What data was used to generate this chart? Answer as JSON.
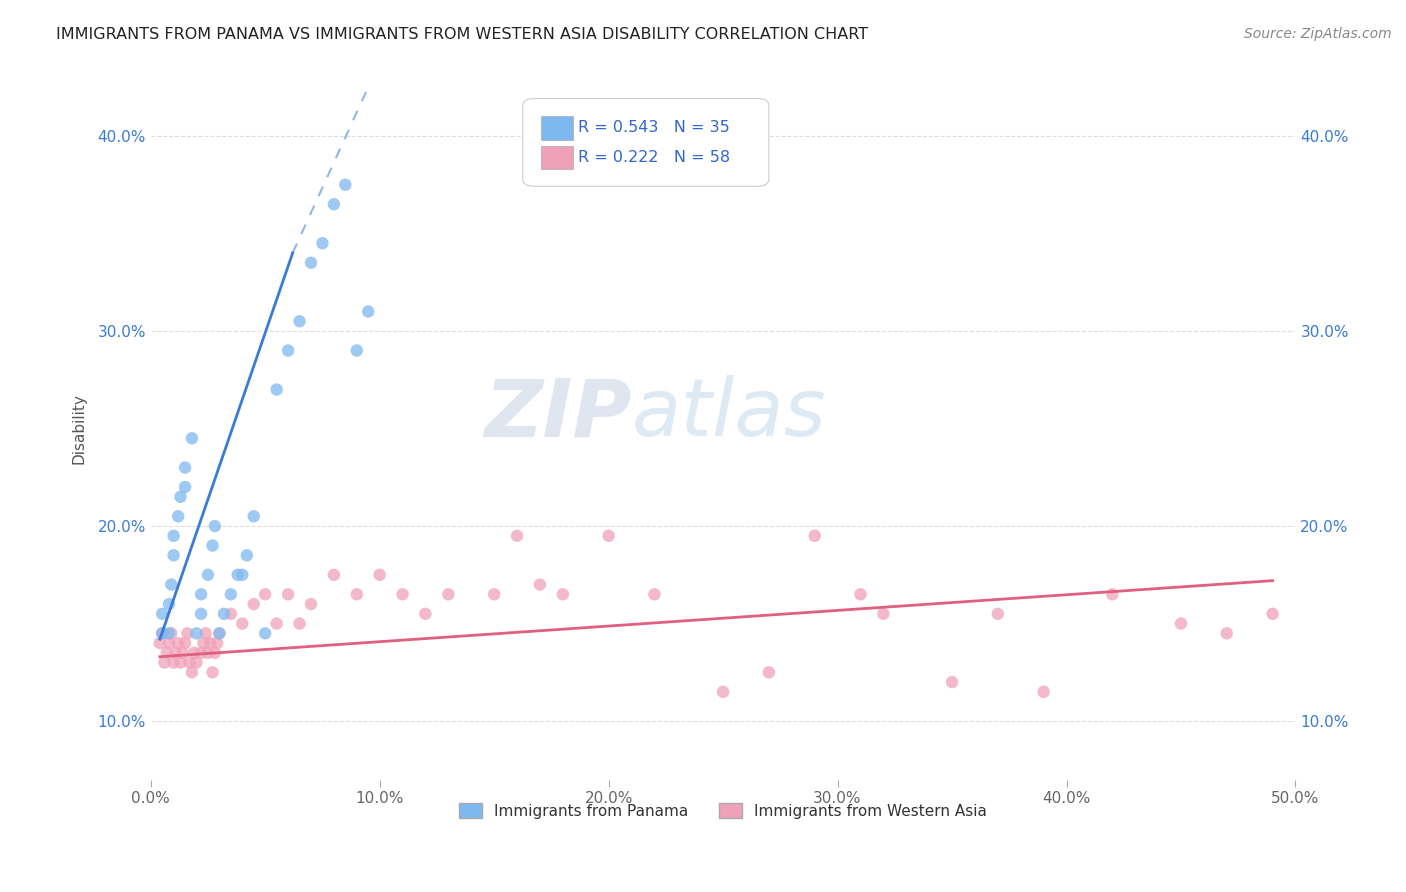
{
  "title": "IMMIGRANTS FROM PANAMA VS IMMIGRANTS FROM WESTERN ASIA DISABILITY CORRELATION CHART",
  "source": "Source: ZipAtlas.com",
  "ylabel": "Disability",
  "xlim": [
    0.0,
    0.5
  ],
  "ylim": [
    0.07,
    0.43
  ],
  "xticks": [
    0.0,
    0.1,
    0.2,
    0.3,
    0.4,
    0.5
  ],
  "yticks": [
    0.1,
    0.2,
    0.3,
    0.4
  ],
  "ytick_labels": [
    "10.0%",
    "20.0%",
    "30.0%",
    "40.0%"
  ],
  "xtick_labels": [
    "0.0%",
    "10.0%",
    "20.0%",
    "30.0%",
    "40.0%",
    "50.0%"
  ],
  "watermark_zip": "ZIP",
  "watermark_atlas": "atlas",
  "legend_r1": "R = 0.543",
  "legend_n1": "N = 35",
  "legend_r2": "R = 0.222",
  "legend_n2": "N = 58",
  "color_panama": "#7eb8f0",
  "color_western_asia": "#f0a0b8",
  "color_line_panama": "#3a7bd5",
  "color_line_western_asia": "#e06080",
  "label_panama": "Immigrants from Panama",
  "label_western_asia": "Immigrants from Western Asia",
  "panama_x": [
    0.005,
    0.005,
    0.008,
    0.008,
    0.009,
    0.01,
    0.01,
    0.012,
    0.013,
    0.015,
    0.015,
    0.018,
    0.02,
    0.022,
    0.022,
    0.025,
    0.027,
    0.028,
    0.03,
    0.032,
    0.035,
    0.038,
    0.04,
    0.042,
    0.045,
    0.05,
    0.055,
    0.06,
    0.065,
    0.07,
    0.075,
    0.08,
    0.085,
    0.09,
    0.095
  ],
  "panama_y": [
    0.145,
    0.155,
    0.145,
    0.16,
    0.17,
    0.185,
    0.195,
    0.205,
    0.215,
    0.22,
    0.23,
    0.245,
    0.145,
    0.155,
    0.165,
    0.175,
    0.19,
    0.2,
    0.145,
    0.155,
    0.165,
    0.175,
    0.175,
    0.185,
    0.205,
    0.145,
    0.27,
    0.29,
    0.305,
    0.335,
    0.345,
    0.365,
    0.375,
    0.29,
    0.31
  ],
  "western_asia_x": [
    0.004,
    0.005,
    0.006,
    0.007,
    0.008,
    0.009,
    0.01,
    0.011,
    0.012,
    0.013,
    0.014,
    0.015,
    0.016,
    0.017,
    0.018,
    0.019,
    0.02,
    0.022,
    0.023,
    0.024,
    0.025,
    0.026,
    0.027,
    0.028,
    0.029,
    0.03,
    0.035,
    0.04,
    0.045,
    0.05,
    0.055,
    0.06,
    0.065,
    0.07,
    0.08,
    0.09,
    0.1,
    0.11,
    0.12,
    0.13,
    0.15,
    0.16,
    0.17,
    0.18,
    0.2,
    0.22,
    0.25,
    0.27,
    0.29,
    0.31,
    0.32,
    0.35,
    0.37,
    0.39,
    0.42,
    0.45,
    0.47,
    0.49
  ],
  "western_asia_y": [
    0.14,
    0.145,
    0.13,
    0.135,
    0.14,
    0.145,
    0.13,
    0.135,
    0.14,
    0.13,
    0.135,
    0.14,
    0.145,
    0.13,
    0.125,
    0.135,
    0.13,
    0.135,
    0.14,
    0.145,
    0.135,
    0.14,
    0.125,
    0.135,
    0.14,
    0.145,
    0.155,
    0.15,
    0.16,
    0.165,
    0.15,
    0.165,
    0.15,
    0.16,
    0.175,
    0.165,
    0.175,
    0.165,
    0.155,
    0.165,
    0.165,
    0.195,
    0.17,
    0.165,
    0.195,
    0.165,
    0.115,
    0.125,
    0.195,
    0.165,
    0.155,
    0.12,
    0.155,
    0.115,
    0.165,
    0.15,
    0.145,
    0.155
  ],
  "background_color": "#ffffff",
  "grid_color": "#dddddd",
  "line_panama_x_start": 0.004,
  "line_panama_y_start": 0.142,
  "line_panama_x_solid_end": 0.062,
  "line_panama_y_solid_end": 0.34,
  "line_panama_x_dash_end": 0.095,
  "line_panama_y_dash_end": 0.425,
  "line_wa_x_start": 0.004,
  "line_wa_y_start": 0.133,
  "line_wa_x_end": 0.49,
  "line_wa_y_end": 0.172
}
